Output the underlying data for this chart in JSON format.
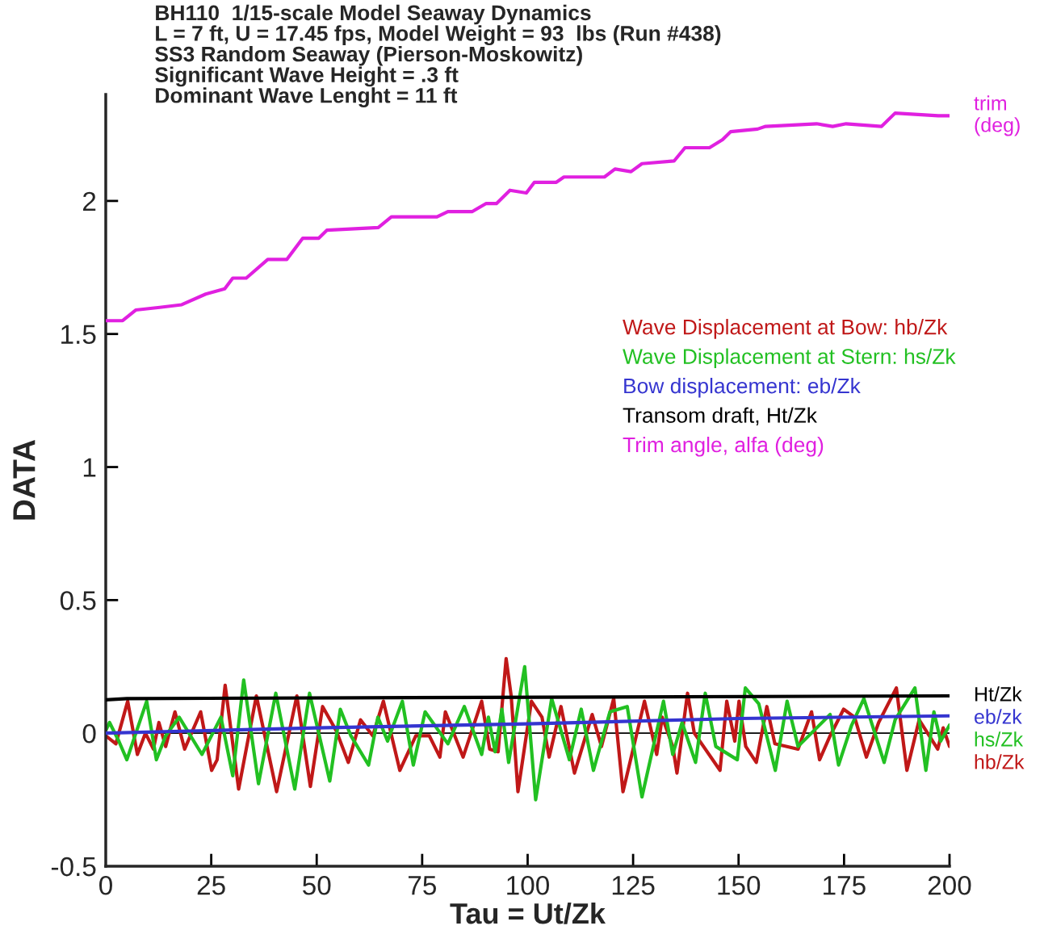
{
  "chart_data": {
    "type": "line",
    "title": "BH110  1/15-scale Model Seaway Dynamics\nL = 7 ft, U = 17.45 fps, Model Weight = 93  lbs (Run #438)\nSS3 Random Seaway (Pierson-Moskowitz)\nSignificant Wave Height = .3 ft\nDominant Wave Lenght = 11 ft",
    "xlabel": "Tau = Ut/Zk",
    "ylabel": "DATA",
    "xlim": [
      0,
      200
    ],
    "xticks": [
      0,
      25,
      50,
      75,
      100,
      125,
      150,
      175,
      200
    ],
    "ylim": [
      -0.5,
      2.4
    ],
    "yticks": [
      -0.5,
      0,
      0.5,
      1,
      1.5,
      2
    ],
    "grid": false,
    "legend": "right",
    "marker": "none",
    "line_style": "solid",
    "ref_lines": [
      {
        "axis": "y",
        "value": 0,
        "color": "#000000"
      }
    ],
    "series": [
      {
        "name": "Wave Displacement at Bow: hb/Zk",
        "color": "#c01818",
        "x": [
          0,
          2.4,
          5.2,
          7.5,
          9.4,
          11.3,
          12.6,
          14.2,
          16.4,
          18.7,
          22.5,
          25.1,
          26.4,
          28.3,
          31.5,
          35.7,
          40.5,
          45.3,
          48.5,
          51.4,
          54.6,
          57.5,
          60.4,
          63.3,
          65.8,
          69.7,
          73.5,
          76.7,
          79.2,
          80.5,
          84.7,
          89.1,
          91,
          93,
          94.9,
          96.1,
          97.7,
          100.9,
          103.4,
          105.1,
          107.9,
          111.1,
          115.3,
          117.5,
          120.4,
          122.6,
          127.7,
          130.6,
          131.9,
          134.4,
          135.4,
          137.9,
          139.5,
          145.6,
          147.2,
          149.1,
          150.1,
          151.7,
          154.2,
          156.7,
          158.6,
          164.1,
          167.3,
          169.2,
          171.7,
          174.9,
          177.5,
          180.3,
          183.2,
          187.4,
          189.9,
          192.8,
          197.2,
          198.5,
          200
        ],
        "values": [
          -0.01,
          -0.04,
          0.12,
          -0.08,
          0.0,
          -0.06,
          0.04,
          -0.05,
          0.08,
          -0.06,
          0.08,
          -0.14,
          -0.1,
          0.18,
          -0.21,
          0.14,
          -0.22,
          0.14,
          -0.2,
          0.1,
          0.01,
          -0.11,
          0.05,
          -0.01,
          0.12,
          -0.14,
          -0.01,
          -0.01,
          -0.09,
          0.08,
          -0.09,
          0.12,
          -0.06,
          -0.07,
          0.28,
          0.14,
          -0.22,
          0.12,
          0.06,
          -0.09,
          0.1,
          -0.15,
          0.07,
          -0.05,
          0.13,
          -0.22,
          0.12,
          -0.08,
          0.06,
          -0.05,
          -0.15,
          0.15,
          0.0,
          -0.14,
          0.12,
          -0.03,
          0.12,
          -0.05,
          -0.11,
          0.1,
          -0.04,
          -0.06,
          0.08,
          -0.1,
          -0.01,
          0.09,
          0.06,
          -0.09,
          0.04,
          0.17,
          -0.14,
          0.05,
          -0.06,
          0.02,
          -0.05
        ]
      },
      {
        "name": "Wave Displacement at Stern: hs/Zk",
        "color": "#22c022",
        "x": [
          0,
          0.9,
          3.1,
          5.0,
          9.7,
          12,
          14.2,
          17.4,
          22.8,
          27.3,
          30.1,
          32.7,
          36.2,
          40.3,
          44.8,
          48.3,
          53.1,
          55.6,
          58.1,
          62.3,
          64.5,
          66.8,
          70.3,
          72.9,
          75.7,
          81.1,
          85,
          89.1,
          90.7,
          92.3,
          93.9,
          95.5,
          99.3,
          101.9,
          105.7,
          109.9,
          112.7,
          115.6,
          119.5,
          123.6,
          127.1,
          132.2,
          134.4,
          136.6,
          139.8,
          142.1,
          144.6,
          149.7,
          151.6,
          154.8,
          158.7,
          161.5,
          164.1,
          171.7,
          173.7,
          176.8,
          179.7,
          184.5,
          187.1,
          191.8,
          194.4,
          196.3,
          197.9,
          200
        ],
        "values": [
          0.01,
          0.04,
          -0.03,
          -0.1,
          0.12,
          -0.1,
          -0.01,
          0.06,
          -0.08,
          0.06,
          -0.16,
          0.2,
          -0.19,
          0.15,
          -0.21,
          0.15,
          -0.18,
          0.09,
          -0.01,
          -0.12,
          0.06,
          -0.03,
          0.12,
          -0.12,
          0.08,
          -0.04,
          0.1,
          -0.08,
          0.06,
          -0.07,
          0.09,
          -0.11,
          0.25,
          -0.25,
          0.13,
          -0.1,
          0.09,
          -0.14,
          0.08,
          0.1,
          -0.24,
          0.12,
          -0.08,
          0.04,
          -0.11,
          0.15,
          -0.05,
          -0.1,
          0.17,
          0.11,
          -0.14,
          0.12,
          -0.05,
          0.07,
          -0.12,
          0.03,
          0.13,
          -0.11,
          0.05,
          0.17,
          -0.14,
          0.08,
          -0.03,
          0.03
        ]
      },
      {
        "name": "Bow displacement: eb/Zk",
        "color": "#3535d0",
        "x": [
          0,
          50,
          100,
          150,
          200
        ],
        "values": [
          0.0,
          0.02,
          0.035,
          0.055,
          0.065
        ]
      },
      {
        "name": "Transom draft, Ht/Zk",
        "color": "#000000",
        "x": [
          0,
          5,
          200
        ],
        "values": [
          0.125,
          0.13,
          0.14
        ]
      },
      {
        "name": "Trim angle, alfa (deg)",
        "color": "#e020e0",
        "x": [
          0,
          4,
          7.1,
          12.8,
          18,
          23.7,
          28.2,
          30.1,
          33.3,
          38.4,
          42.9,
          46.7,
          50.5,
          52.4,
          64.6,
          67.7,
          78.5,
          81.1,
          86.9,
          90.1,
          92.6,
          95.8,
          99.7,
          101.6,
          106.8,
          108.6,
          118.2,
          120.7,
          124.5,
          127.1,
          134.7,
          137.3,
          143.1,
          146.2,
          148.1,
          154.5,
          156.4,
          168.5,
          172.3,
          175.5,
          183.9,
          187.1,
          197.3,
          200
        ],
        "values": [
          1.55,
          1.55,
          1.59,
          1.6,
          1.61,
          1.65,
          1.67,
          1.71,
          1.71,
          1.78,
          1.78,
          1.86,
          1.86,
          1.89,
          1.9,
          1.94,
          1.94,
          1.96,
          1.96,
          1.99,
          1.99,
          2.04,
          2.03,
          2.07,
          2.07,
          2.09,
          2.09,
          2.12,
          2.11,
          2.14,
          2.15,
          2.2,
          2.2,
          2.23,
          2.26,
          2.27,
          2.28,
          2.29,
          2.28,
          2.29,
          2.28,
          2.33,
          2.32,
          2.32
        ]
      }
    ],
    "annotations": [
      "trim\n(deg)",
      "Ht/Zk",
      "eb/zk",
      "hs/Zk",
      "hb/Zk"
    ]
  }
}
